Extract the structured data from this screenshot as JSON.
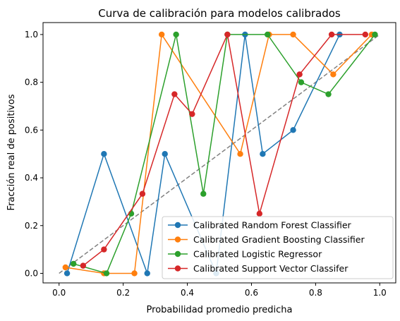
{
  "chart_data": {
    "type": "line",
    "title": "Curva de calibración para modelos calibrados",
    "xlabel": "Probabilidad promedio predicha",
    "ylabel": "Fracción real de positivos",
    "xlim": [
      -0.05,
      1.05
    ],
    "ylim": [
      -0.04,
      1.05
    ],
    "xticks": [
      "0.0",
      "0.2",
      "0.4",
      "0.6",
      "0.8",
      "1.0"
    ],
    "yticks": [
      "0.0",
      "0.2",
      "0.4",
      "0.6",
      "0.8",
      "1.0"
    ],
    "grid": false,
    "legend_position": "lower-right",
    "reference_line": {
      "x": [
        0,
        1
      ],
      "y": [
        0,
        1
      ],
      "color": "#808080",
      "style": "dashed"
    },
    "series": [
      {
        "name": "Calibrated Random Forest Classifier",
        "color": "#1f77b4",
        "x": [
          0.025,
          0.14,
          0.275,
          0.33,
          0.49,
          0.58,
          0.635,
          0.73,
          0.875
        ],
        "y": [
          0.0,
          0.5,
          0.0,
          0.5,
          0.0,
          1.0,
          0.5,
          0.6,
          1.0
        ]
      },
      {
        "name": "Calibrated Gradient Boosting Classifier",
        "color": "#ff7f0e",
        "x": [
          0.02,
          0.14,
          0.235,
          0.32,
          0.565,
          0.655,
          0.73,
          0.855,
          0.975
        ],
        "y": [
          0.025,
          0.0,
          0.0,
          1.0,
          0.5,
          1.0,
          1.0,
          0.833,
          1.0
        ]
      },
      {
        "name": "Calibrated Logistic Regressor",
        "color": "#2ca02c",
        "x": [
          0.045,
          0.148,
          0.225,
          0.365,
          0.45,
          0.525,
          0.65,
          0.755,
          0.84,
          0.985
        ],
        "y": [
          0.04,
          0.0,
          0.25,
          1.0,
          0.333,
          1.0,
          1.0,
          0.8,
          0.75,
          1.0
        ]
      },
      {
        "name": "Calibrated Support Vector Classifer",
        "color": "#d62728",
        "x": [
          0.075,
          0.14,
          0.26,
          0.36,
          0.415,
          0.525,
          0.625,
          0.75,
          0.85,
          0.955
        ],
        "y": [
          0.032,
          0.1,
          0.333,
          0.75,
          0.667,
          1.0,
          0.25,
          0.833,
          1.0,
          1.0
        ]
      }
    ]
  }
}
